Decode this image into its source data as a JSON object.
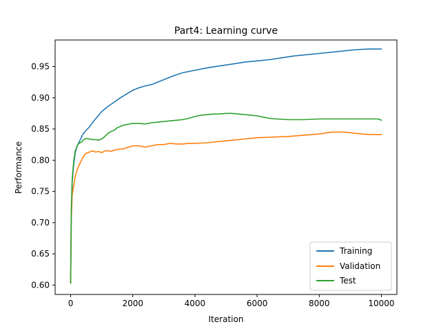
{
  "chart_data": {
    "type": "line",
    "title": "Part4: Learning curve",
    "xlabel": "Iteration",
    "ylabel": "Performance",
    "xlim": [
      -500,
      10500
    ],
    "ylim": [
      0.585,
      0.9925
    ],
    "xticks": [
      0,
      2000,
      4000,
      6000,
      8000,
      10000
    ],
    "yticks": [
      0.6,
      0.65,
      0.7,
      0.75,
      0.8,
      0.85,
      0.9,
      0.95
    ],
    "xtick_labels": [
      "0",
      "2000",
      "4000",
      "6000",
      "8000",
      "10000"
    ],
    "ytick_labels": [
      "0.60",
      "0.65",
      "0.70",
      "0.75",
      "0.80",
      "0.85",
      "0.90",
      "0.95"
    ],
    "legend_position": "lower-right",
    "grid": false,
    "series": [
      {
        "name": "Training",
        "color": "#1f77b4",
        "x": [
          0,
          20,
          50,
          100,
          150,
          200,
          300,
          400,
          500,
          600,
          700,
          800,
          900,
          1000,
          1200,
          1400,
          1600,
          1800,
          2000,
          2200,
          2400,
          2600,
          2800,
          3000,
          3300,
          3600,
          4000,
          4400,
          4800,
          5200,
          5600,
          6000,
          6400,
          6800,
          7200,
          7600,
          8000,
          8400,
          8800,
          9200,
          9600,
          10000
        ],
        "y": [
          0.603,
          0.7,
          0.765,
          0.795,
          0.812,
          0.822,
          0.832,
          0.842,
          0.848,
          0.853,
          0.86,
          0.866,
          0.872,
          0.878,
          0.886,
          0.893,
          0.9,
          0.906,
          0.912,
          0.916,
          0.919,
          0.921,
          0.925,
          0.929,
          0.935,
          0.94,
          0.944,
          0.948,
          0.951,
          0.954,
          0.957,
          0.959,
          0.961,
          0.964,
          0.967,
          0.969,
          0.971,
          0.973,
          0.975,
          0.977,
          0.978,
          0.978
        ]
      },
      {
        "name": "Validation",
        "color": "#ff7f0e",
        "x": [
          0,
          20,
          50,
          100,
          150,
          200,
          250,
          300,
          350,
          400,
          450,
          500,
          600,
          700,
          800,
          900,
          1000,
          1100,
          1200,
          1300,
          1400,
          1500,
          1600,
          1700,
          1800,
          2000,
          2200,
          2400,
          2600,
          2800,
          3000,
          3200,
          3400,
          3600,
          3800,
          4000,
          4400,
          4800,
          5200,
          5600,
          6000,
          6500,
          7000,
          7500,
          8000,
          8400,
          8800,
          9200,
          9600,
          10000
        ],
        "y": [
          0.603,
          0.705,
          0.745,
          0.76,
          0.775,
          0.783,
          0.79,
          0.795,
          0.8,
          0.805,
          0.809,
          0.811,
          0.813,
          0.815,
          0.813,
          0.814,
          0.812,
          0.815,
          0.815,
          0.814,
          0.816,
          0.817,
          0.818,
          0.818,
          0.82,
          0.823,
          0.823,
          0.821,
          0.823,
          0.825,
          0.825,
          0.827,
          0.826,
          0.826,
          0.827,
          0.827,
          0.828,
          0.83,
          0.832,
          0.834,
          0.836,
          0.837,
          0.838,
          0.84,
          0.842,
          0.845,
          0.845,
          0.843,
          0.841,
          0.841
        ]
      },
      {
        "name": "Test",
        "color": "#2ca02c",
        "x": [
          0,
          20,
          50,
          100,
          150,
          200,
          250,
          300,
          350,
          400,
          500,
          600,
          700,
          800,
          900,
          1000,
          1100,
          1200,
          1300,
          1400,
          1500,
          1600,
          1700,
          1800,
          2000,
          2200,
          2400,
          2600,
          2800,
          3000,
          3200,
          3400,
          3600,
          3800,
          4000,
          4200,
          4400,
          4600,
          4800,
          5000,
          5200,
          5400,
          5600,
          5800,
          6000,
          6200,
          6400,
          6600,
          7000,
          7500,
          8000,
          8500,
          9000,
          9500,
          9900,
          10000
        ],
        "y": [
          0.603,
          0.72,
          0.77,
          0.8,
          0.815,
          0.822,
          0.826,
          0.828,
          0.829,
          0.832,
          0.835,
          0.834,
          0.833,
          0.833,
          0.832,
          0.834,
          0.838,
          0.843,
          0.846,
          0.848,
          0.852,
          0.854,
          0.856,
          0.857,
          0.859,
          0.859,
          0.858,
          0.86,
          0.861,
          0.862,
          0.863,
          0.864,
          0.865,
          0.867,
          0.87,
          0.872,
          0.873,
          0.874,
          0.874,
          0.875,
          0.875,
          0.874,
          0.873,
          0.872,
          0.871,
          0.869,
          0.867,
          0.866,
          0.865,
          0.865,
          0.866,
          0.866,
          0.866,
          0.866,
          0.866,
          0.864
        ]
      }
    ]
  }
}
